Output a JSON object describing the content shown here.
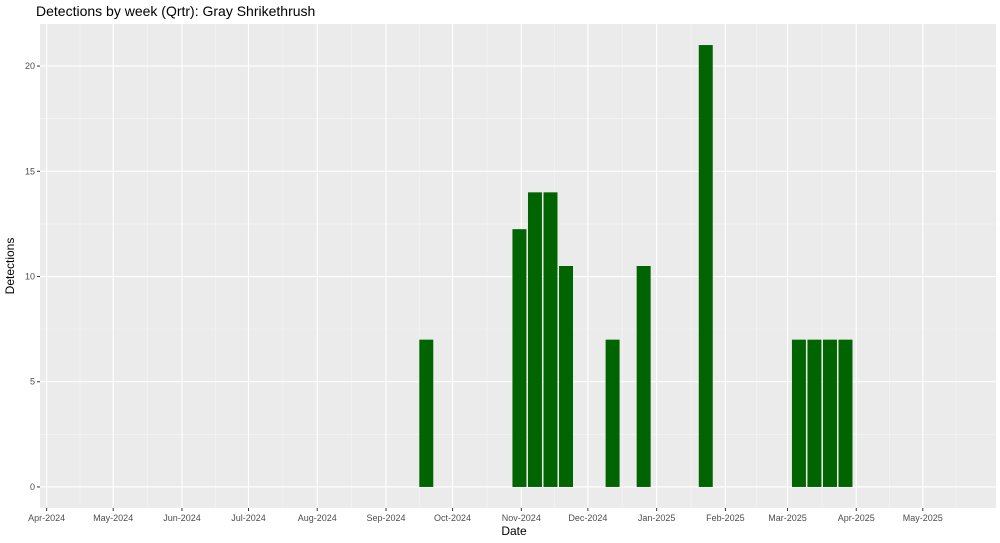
{
  "chart_data": {
    "type": "bar",
    "title": "Detections by week (Qrtr): Gray Shrikethrush",
    "xlabel": "Date",
    "ylabel": "Detections",
    "ylim": [
      -1,
      22
    ],
    "xlim": [
      "2024-03-29",
      "2025-06-03"
    ],
    "x_ticks": [
      {
        "date": "2024-04-01",
        "label": "Apr-2024"
      },
      {
        "date": "2024-05-01",
        "label": "May-2024"
      },
      {
        "date": "2024-06-01",
        "label": "Jun-2024"
      },
      {
        "date": "2024-07-01",
        "label": "Jul-2024"
      },
      {
        "date": "2024-08-01",
        "label": "Aug-2024"
      },
      {
        "date": "2024-09-01",
        "label": "Sep-2024"
      },
      {
        "date": "2024-10-01",
        "label": "Oct-2024"
      },
      {
        "date": "2024-11-01",
        "label": "Nov-2024"
      },
      {
        "date": "2024-12-01",
        "label": "Dec-2024"
      },
      {
        "date": "2025-01-01",
        "label": "Jan-2025"
      },
      {
        "date": "2025-02-01",
        "label": "Feb-2025"
      },
      {
        "date": "2025-03-01",
        "label": "Mar-2025"
      },
      {
        "date": "2025-04-01",
        "label": "Apr-2025"
      },
      {
        "date": "2025-05-01",
        "label": "May-2025"
      }
    ],
    "y_ticks": [
      0,
      5,
      10,
      15,
      20
    ],
    "bars": [
      {
        "date": "2024-09-16",
        "value": 7
      },
      {
        "date": "2024-10-28",
        "value": 12.25
      },
      {
        "date": "2024-11-04",
        "value": 14
      },
      {
        "date": "2024-11-11",
        "value": 14
      },
      {
        "date": "2024-11-18",
        "value": 10.5
      },
      {
        "date": "2024-12-09",
        "value": 7
      },
      {
        "date": "2024-12-23",
        "value": 10.5
      },
      {
        "date": "2025-01-20",
        "value": 21
      },
      {
        "date": "2025-03-03",
        "value": 7
      },
      {
        "date": "2025-03-10",
        "value": 7
      },
      {
        "date": "2025-03-17",
        "value": 7
      },
      {
        "date": "2025-03-24",
        "value": 7
      }
    ],
    "bar_color": "#006400",
    "panel_color": "#ebebeb",
    "grid": true
  }
}
